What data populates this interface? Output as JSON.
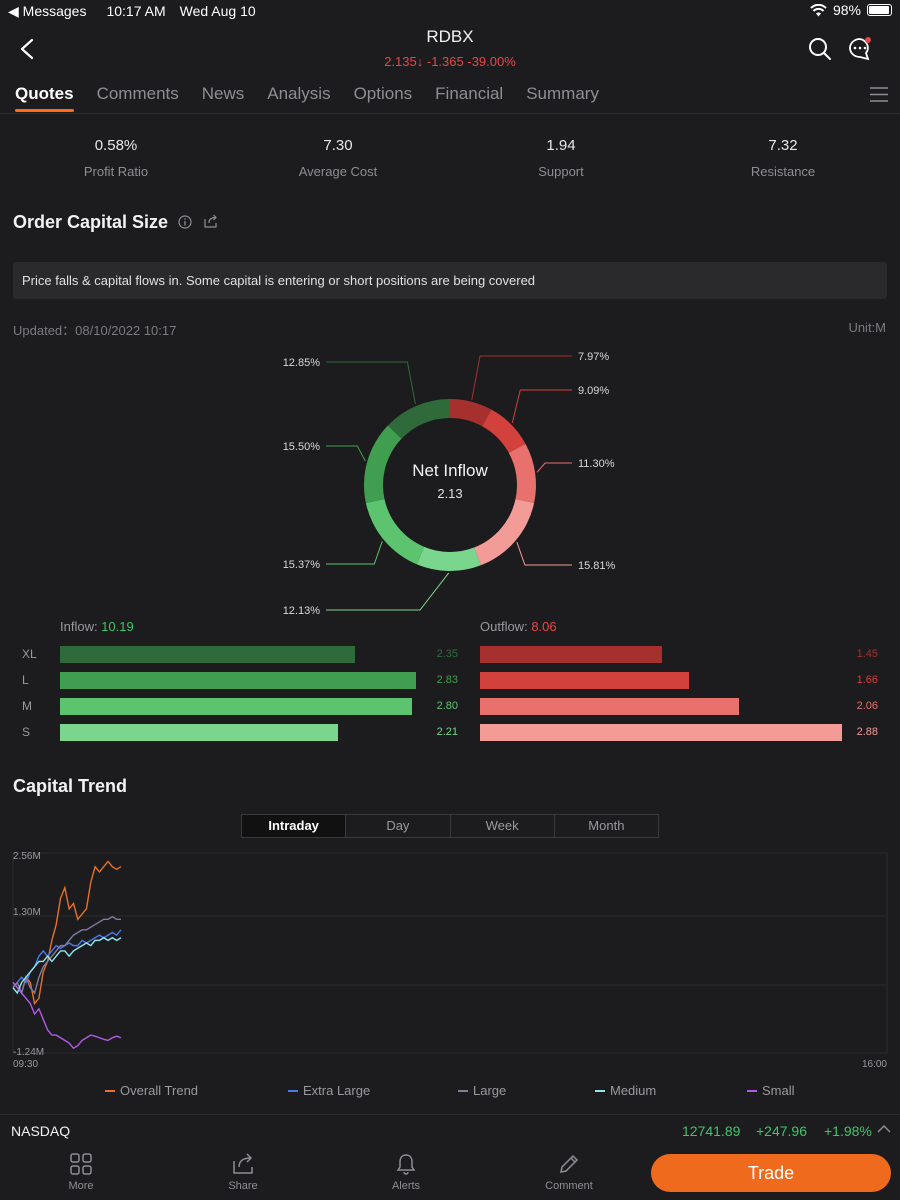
{
  "status_bar": {
    "back_app": "◀ Messages",
    "time": "10:17 AM",
    "date": "Wed Aug 10",
    "battery": "98%"
  },
  "header": {
    "symbol": "RDBX",
    "price": "2.135",
    "arrow": "↓",
    "change": "-1.365",
    "change_pct": "-39.00%"
  },
  "tabs": [
    "Quotes",
    "Comments",
    "News",
    "Analysis",
    "Options",
    "Financial",
    "Summary"
  ],
  "stats": [
    {
      "value": "0.58%",
      "label": "Profit Ratio"
    },
    {
      "value": "7.30",
      "label": "Average Cost"
    },
    {
      "value": "1.94",
      "label": "Support"
    },
    {
      "value": "7.32",
      "label": "Resistance"
    }
  ],
  "order_capital": {
    "title": "Order Capital Size",
    "banner": "Price falls & capital flows in. Some capital is entering or short positions are being covered",
    "updated_label": "Updated：",
    "updated_value": "08/10/2022 10:17",
    "unit": "Unit:M",
    "donut_center_title": "Net Inflow",
    "donut_center_value": "2.13",
    "inflow_label": "Inflow:",
    "inflow_value": "10.19",
    "outflow_label": "Outflow:",
    "outflow_value": "8.06"
  },
  "chart_data": [
    {
      "type": "pie",
      "title": "Net Inflow",
      "slices": [
        {
          "label": "Outflow XL",
          "value": 7.97,
          "text": "7.97%",
          "color": "#a5302e"
        },
        {
          "label": "Outflow L",
          "value": 9.09,
          "text": "9.09%",
          "color": "#d2413c"
        },
        {
          "label": "Outflow M",
          "value": 11.3,
          "text": "11.30%",
          "color": "#e8716e"
        },
        {
          "label": "Outflow S",
          "value": 15.81,
          "text": "15.81%",
          "color": "#f29b97"
        },
        {
          "label": "Inflow S",
          "value": 12.13,
          "text": "12.13%",
          "color": "#7bd68d"
        },
        {
          "label": "Inflow M",
          "value": 15.37,
          "text": "15.37%",
          "color": "#5cc46f"
        },
        {
          "label": "Inflow L",
          "value": 15.5,
          "text": "15.50%",
          "color": "#3f9e4f"
        },
        {
          "label": "Inflow XL",
          "value": 12.85,
          "text": "12.85%",
          "color": "#2f6b3a"
        }
      ]
    },
    {
      "type": "bar",
      "title": "Inflow",
      "categories": [
        "XL",
        "L",
        "M",
        "S"
      ],
      "values": [
        2.35,
        2.83,
        2.8,
        2.21
      ],
      "labels": [
        "2.35",
        "2.83",
        "2.80",
        "2.21"
      ],
      "colors": [
        "#2f6b3a",
        "#3f9e4f",
        "#5cc46f",
        "#7bd68d"
      ],
      "max": 2.88
    },
    {
      "type": "bar",
      "title": "Outflow",
      "categories": [
        "XL",
        "L",
        "M",
        "S"
      ],
      "values": [
        1.45,
        1.66,
        2.06,
        2.88
      ],
      "labels": [
        "1.45",
        "1.66",
        "2.06",
        "2.88"
      ],
      "colors": [
        "#a5302e",
        "#d2413c",
        "#e8716e",
        "#f29b97"
      ],
      "max": 2.88
    },
    {
      "type": "line",
      "title": "Capital Trend",
      "ylim": [
        -1.24,
        2.56
      ],
      "y_ticks": [
        "2.56M",
        "1.30M",
        "-1.24M"
      ],
      "x_start": "09:30",
      "x_end": "16:00",
      "series": [
        {
          "name": "Overall Trend",
          "color": "#e8702a",
          "values": [
            0.1,
            0.0,
            -0.1,
            0.2,
            0.1,
            -0.3,
            -0.2,
            0.3,
            0.5,
            0.9,
            1.2,
            1.7,
            1.9,
            1.5,
            1.6,
            1.3,
            1.4,
            1.5,
            2.0,
            2.3,
            2.2,
            2.3,
            2.4,
            2.3,
            2.25,
            2.3
          ]
        },
        {
          "name": "Extra Large",
          "color": "#4b79e8",
          "values": [
            0.0,
            0.1,
            0.2,
            0.1,
            0.3,
            0.4,
            0.6,
            0.7,
            0.6,
            0.7,
            0.8,
            0.75,
            0.8,
            0.85,
            0.8,
            0.8,
            0.9,
            0.85,
            0.9,
            0.95,
            1.0,
            0.95,
            1.0,
            1.05,
            1.0,
            1.1
          ]
        },
        {
          "name": "Large",
          "color": "#7e7ea3",
          "values": [
            0.0,
            0.1,
            -0.1,
            0.2,
            0.0,
            -0.1,
            0.2,
            0.4,
            0.5,
            0.6,
            0.7,
            0.8,
            0.8,
            0.9,
            1.0,
            1.05,
            1.1,
            1.1,
            1.15,
            1.2,
            1.25,
            1.3,
            1.3,
            1.35,
            1.3,
            1.3
          ]
        },
        {
          "name": "Medium",
          "color": "#8fe6ef",
          "values": [
            0.0,
            -0.1,
            0.1,
            0.2,
            0.3,
            0.4,
            0.5,
            0.5,
            0.6,
            0.5,
            0.6,
            0.7,
            0.7,
            0.6,
            0.7,
            0.75,
            0.8,
            0.85,
            0.8,
            0.9,
            0.9,
            0.95,
            0.9,
            0.95,
            0.9,
            0.95
          ]
        },
        {
          "name": "Small",
          "color": "#b05be8",
          "values": [
            0.1,
            0.0,
            -0.1,
            -0.2,
            -0.3,
            -0.5,
            -0.4,
            -0.6,
            -0.8,
            -0.9,
            -0.9,
            -0.95,
            -1.0,
            -1.05,
            -1.15,
            -1.1,
            -1.0,
            -0.95,
            -0.9,
            -0.92,
            -0.95,
            -0.98,
            -1.0,
            -0.95,
            -0.92,
            -0.95
          ]
        }
      ]
    }
  ],
  "capital_trend": {
    "title": "Capital Trend",
    "periods": [
      "Intraday",
      "Day",
      "Week",
      "Month"
    ]
  },
  "ticker": {
    "name": "NASDAQ",
    "value": "12741.89",
    "change": "+247.96",
    "change_pct": "+1.98%"
  },
  "tabbar": {
    "more": "More",
    "share": "Share",
    "alerts": "Alerts",
    "comment": "Comment",
    "trade": "Trade"
  },
  "colors": {
    "accent": "#f06a1e",
    "up": "#3ec56a",
    "down": "#e8474a"
  }
}
